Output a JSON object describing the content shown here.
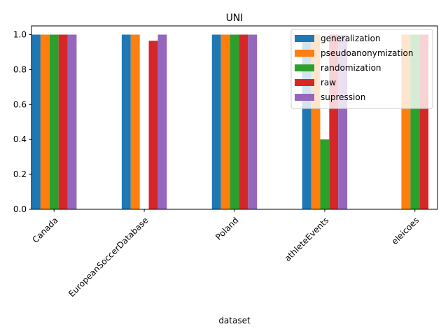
{
  "chart_data": {
    "type": "bar",
    "title": "UNI",
    "xlabel": "dataset",
    "ylabel": "",
    "ylim": [
      0,
      1.05
    ],
    "yticks": [
      "0.0",
      "0.2",
      "0.4",
      "0.6",
      "0.8",
      "1.0"
    ],
    "categories": [
      "Canada",
      "EuropeanSoccerDatabase",
      "Poland",
      "athleteEvents",
      "eleicoes"
    ],
    "series": [
      {
        "name": "generalization",
        "color": "#1f77b4",
        "values": [
          1.0,
          1.0,
          1.0,
          1.0,
          null
        ]
      },
      {
        "name": "pseudoanonymization",
        "color": "#ff7f0e",
        "values": [
          1.0,
          1.0,
          1.0,
          1.0,
          1.0
        ]
      },
      {
        "name": "randomization",
        "color": "#2ca02c",
        "values": [
          1.0,
          null,
          1.0,
          0.4,
          1.0
        ]
      },
      {
        "name": "raw",
        "color": "#d62728",
        "values": [
          1.0,
          0.965,
          1.0,
          1.0,
          1.0
        ]
      },
      {
        "name": "supression",
        "color": "#9467bd",
        "values": [
          1.0,
          1.0,
          1.0,
          1.0,
          null
        ]
      }
    ],
    "legend_position": "top-right",
    "grid": false
  }
}
